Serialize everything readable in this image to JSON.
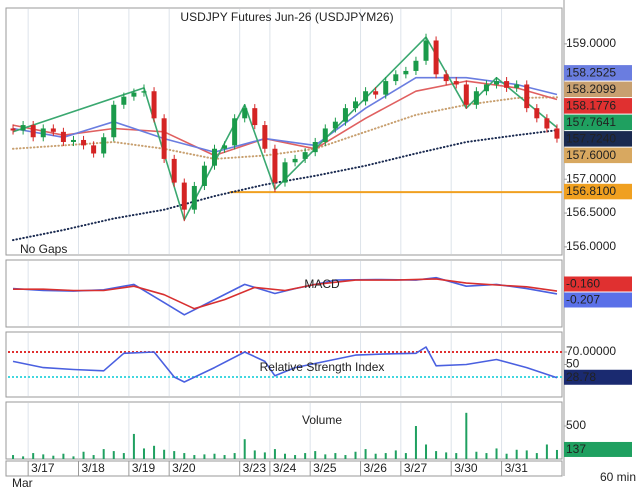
{
  "chart_data": [
    {
      "type": "candlestick",
      "title": "USDJPY  Futures  Jun-26  (USDJPYM26)",
      "annotation": "No  Gaps",
      "interval": "60 min",
      "x_group_label": "Mar",
      "categories": [
        null,
        null,
        "3/17",
        null,
        null,
        null,
        null,
        "3/18",
        null,
        null,
        null,
        null,
        "3/19",
        null,
        null,
        null,
        "3/20",
        null,
        null,
        null,
        null,
        null,
        null,
        "3/23",
        null,
        null,
        "3/24",
        null,
        null,
        null,
        "3/25",
        null,
        null,
        null,
        null,
        "3/26",
        null,
        null,
        null,
        "3/27",
        null,
        null,
        null,
        null,
        "3/30",
        null,
        null,
        null,
        null,
        "3/31",
        null,
        null,
        null,
        null,
        null
      ],
      "open": [
        157.75,
        157.72,
        157.8,
        157.62,
        157.75,
        157.7,
        157.55,
        157.58,
        157.5,
        157.38,
        157.62,
        158.1,
        158.22,
        158.28,
        158.3,
        157.9,
        157.3,
        156.95,
        156.55,
        156.9,
        157.2,
        157.45,
        157.5,
        157.9,
        158.05,
        157.8,
        157.45,
        156.95,
        157.25,
        157.3,
        157.4,
        157.55,
        157.75,
        157.85,
        158.05,
        158.15,
        158.3,
        158.25,
        158.45,
        158.55,
        158.6,
        158.75,
        159.05,
        158.55,
        158.45,
        158.4,
        158.1,
        158.3,
        158.4,
        158.45,
        158.35,
        158.4,
        158.05,
        157.9,
        157.75
      ],
      "high": [
        157.81,
        157.86,
        157.86,
        157.81,
        157.81,
        157.76,
        157.64,
        157.64,
        157.56,
        157.68,
        158.16,
        158.28,
        158.34,
        158.4,
        158.36,
        157.96,
        157.36,
        157.01,
        156.96,
        157.26,
        157.51,
        157.56,
        157.96,
        158.11,
        158.11,
        157.86,
        157.51,
        157.31,
        157.36,
        157.46,
        157.61,
        157.81,
        157.91,
        158.11,
        158.21,
        158.36,
        158.36,
        158.51,
        158.61,
        158.66,
        158.81,
        159.15,
        159.11,
        158.61,
        158.51,
        158.46,
        158.36,
        158.46,
        158.51,
        158.51,
        158.46,
        158.46,
        158.11,
        157.96,
        157.81
      ],
      "low": [
        157.66,
        157.66,
        157.56,
        157.56,
        157.64,
        157.49,
        157.49,
        157.44,
        157.32,
        157.32,
        157.56,
        158.04,
        158.16,
        158.22,
        157.84,
        157.24,
        156.89,
        156.38,
        156.49,
        156.84,
        157.14,
        157.39,
        157.44,
        157.84,
        157.74,
        157.39,
        156.81,
        156.89,
        157.19,
        157.24,
        157.34,
        157.49,
        157.69,
        157.79,
        157.99,
        158.09,
        158.19,
        158.19,
        158.39,
        158.49,
        158.54,
        158.69,
        158.49,
        158.39,
        158.34,
        158.04,
        158.04,
        158.24,
        158.34,
        158.29,
        158.29,
        157.99,
        157.84,
        157.69,
        157.54
      ],
      "close": [
        157.72,
        157.8,
        157.62,
        157.75,
        157.7,
        157.55,
        157.58,
        157.5,
        157.38,
        157.62,
        158.1,
        158.22,
        158.28,
        158.3,
        157.9,
        157.3,
        156.95,
        156.55,
        156.9,
        157.2,
        157.45,
        157.5,
        157.9,
        158.05,
        157.8,
        157.45,
        156.95,
        157.25,
        157.3,
        157.4,
        157.55,
        157.75,
        157.85,
        158.05,
        158.15,
        158.3,
        158.25,
        158.45,
        158.55,
        158.6,
        158.75,
        159.05,
        158.55,
        158.45,
        158.4,
        158.1,
        158.3,
        158.4,
        158.45,
        158.35,
        158.4,
        158.05,
        157.9,
        157.75,
        157.6
      ],
      "up_color": "#1a9a4a",
      "down_color": "#d42424",
      "series": [
        {
          "color": "#1a2a50",
          "dash": "dotted",
          "x": [
            0,
            5,
            10,
            15,
            20,
            25,
            30,
            35,
            40,
            45,
            50,
            54
          ],
          "values": [
            156.1,
            156.25,
            156.42,
            156.55,
            156.75,
            156.92,
            157.05,
            157.2,
            157.38,
            157.55,
            157.65,
            157.724
          ]
        },
        {
          "color": "#c8a070",
          "dash": "dotted",
          "x": [
            0,
            5,
            10,
            15,
            20,
            25,
            30,
            35,
            40,
            45,
            50,
            54
          ],
          "values": [
            157.45,
            157.5,
            157.55,
            157.45,
            157.3,
            157.35,
            157.45,
            157.7,
            157.95,
            158.1,
            158.2,
            158.2099
          ]
        },
        {
          "color": "#e06060",
          "x": [
            0,
            5,
            10,
            15,
            20,
            25,
            30,
            35,
            40,
            45,
            50,
            54
          ],
          "values": [
            157.8,
            157.65,
            157.75,
            157.7,
            157.35,
            157.6,
            157.45,
            157.9,
            158.3,
            158.45,
            158.35,
            158.1776
          ]
        },
        {
          "color": "#6a7de0",
          "x": [
            0,
            5,
            10,
            15,
            20,
            25,
            30,
            35,
            40,
            45,
            50,
            54
          ],
          "values": [
            157.75,
            157.62,
            157.85,
            157.6,
            157.4,
            157.6,
            157.5,
            158.05,
            158.5,
            158.5,
            158.4,
            158.2525
          ]
        },
        {
          "color": "#3aa870",
          "x": [
            0,
            13,
            17,
            23,
            26,
            41,
            45,
            48,
            54
          ],
          "values": [
            157.7,
            158.35,
            156.4,
            158.1,
            156.85,
            159.1,
            158.05,
            158.5,
            157.7641
          ]
        }
      ],
      "hline": {
        "value": 156.81,
        "start": 22,
        "color": "#f0a020"
      },
      "ylim": [
        155.88,
        159.53
      ],
      "yticks": [
        {
          "value": 156,
          "label": "156.0000"
        },
        {
          "value": 156.5,
          "label": "156.5000"
        },
        {
          "value": 157,
          "label": "157.0000"
        },
        {
          "value": 159,
          "label": "159.0000"
        }
      ],
      "tags": [
        {
          "value": 158.2525,
          "label": "158.2525",
          "color": "#6a7de0"
        },
        {
          "value": 158.2099,
          "label": "158.2099",
          "color": "#c8a070"
        },
        {
          "value": 158.1776,
          "label": "158.1776",
          "color": "#e03030"
        },
        {
          "value": 157.7641,
          "label": "157.7641",
          "color": "#1fa060"
        },
        {
          "value": 157.724,
          "label": "157.7240",
          "color": "#1a2a50"
        },
        {
          "value": 157.6,
          "label": "157.6000",
          "color": "#d8a860"
        },
        {
          "value": 156.81,
          "label": "156.8100",
          "color": "#f0a020"
        }
      ]
    },
    {
      "type": "line",
      "title": "MACD",
      "series": [
        {
          "color": "#4a60e0",
          "x": [
            0,
            3,
            6,
            9,
            12,
            15,
            17,
            20,
            23,
            26,
            28,
            32,
            36,
            40,
            42,
            45,
            48,
            51,
            54
          ],
          "values": [
            -0.12,
            -0.15,
            -0.16,
            -0.14,
            -0.05,
            -0.35,
            -0.55,
            -0.3,
            -0.05,
            -0.2,
            -0.12,
            0.02,
            0.03,
            0.02,
            0.06,
            -0.08,
            -0.05,
            -0.12,
            -0.207
          ]
        },
        {
          "color": "#d83030",
          "x": [
            0,
            3,
            6,
            9,
            12,
            15,
            18,
            21,
            24,
            27,
            30,
            34,
            38,
            42,
            45,
            48,
            51,
            54
          ],
          "values": [
            -0.13,
            -0.13,
            -0.15,
            -0.15,
            -0.08,
            -0.22,
            -0.45,
            -0.3,
            -0.1,
            -0.15,
            -0.05,
            0.02,
            0.02,
            0.04,
            -0.03,
            -0.06,
            -0.09,
            -0.16
          ]
        }
      ],
      "ylim": [
        -0.75,
        0.35
      ],
      "tags": [
        {
          "value": -0.16,
          "label": "-0.160",
          "color": "#e03030"
        },
        {
          "value": -0.207,
          "label": "-0.207",
          "color": "#5a70e8"
        }
      ]
    },
    {
      "type": "line",
      "title": "Relative  Strength  Index",
      "series": [
        {
          "color": "#4a60e0",
          "x": [
            0,
            3,
            6,
            9,
            11,
            14,
            16,
            17,
            20,
            23,
            25,
            26,
            28,
            31,
            34,
            37,
            40,
            41,
            42,
            45,
            48,
            51,
            54
          ],
          "values": [
            55,
            45,
            42,
            40,
            68,
            70,
            30,
            22,
            45,
            70,
            55,
            32,
            45,
            55,
            65,
            67,
            68,
            78,
            48,
            50,
            58,
            45,
            28.78
          ]
        }
      ],
      "ref_lines": [
        {
          "value": 70,
          "color": "#e03030"
        },
        {
          "value": 30,
          "color": "#40d8e0"
        }
      ],
      "ylim": [
        -2,
        102
      ],
      "yticks": [
        {
          "value": 70,
          "label": "70.00000"
        },
        50,
        {
          "value": 30,
          "label": "30.00000"
        }
      ],
      "tags": [
        {
          "value": 28.78,
          "color": "#1a2a70"
        }
      ]
    },
    {
      "type": "bar",
      "title": "Volume",
      "color": "#1fa060",
      "values": [
        60,
        40,
        90,
        70,
        50,
        80,
        40,
        110,
        60,
        150,
        120,
        90,
        380,
        160,
        200,
        140,
        120,
        90,
        60,
        70,
        80,
        60,
        90,
        300,
        130,
        100,
        150,
        80,
        60,
        90,
        120,
        70,
        90,
        60,
        110,
        150,
        80,
        90,
        130,
        90,
        500,
        220,
        120,
        100,
        90,
        700,
        110,
        90,
        160,
        80,
        140,
        130,
        90,
        220,
        137
      ],
      "ylim": [
        0,
        864
      ],
      "yticks": [
        500
      ],
      "tags": [
        {
          "value": 137,
          "color": "#1fa060"
        }
      ]
    }
  ]
}
